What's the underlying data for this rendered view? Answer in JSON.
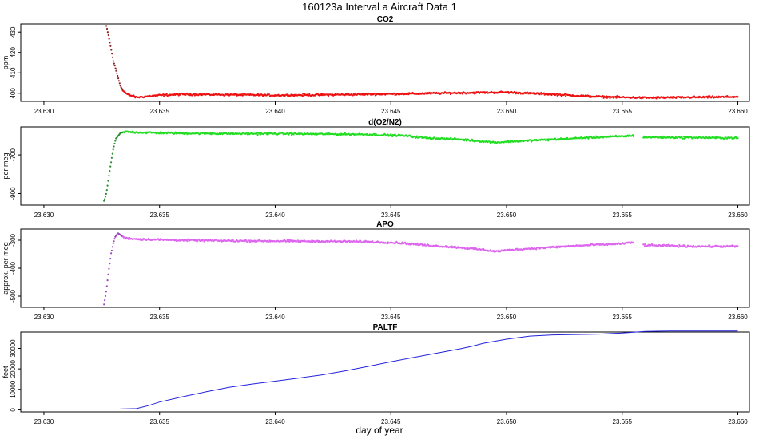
{
  "figure": {
    "title": "160123a   Interval a Aircraft Data 1",
    "xlabel": "day of year"
  },
  "chart_data": [
    {
      "type": "scatter",
      "title": "CO2",
      "ylabel": "ppm",
      "xlim": [
        23.629,
        23.6605
      ],
      "ylim": [
        396,
        434
      ],
      "x_ticks": [
        "23.630",
        "23.635",
        "23.640",
        "23.645",
        "23.650",
        "23.655",
        "23.660"
      ],
      "y_ticks": [
        400,
        410,
        420,
        430
      ],
      "colors": {
        "main": "#ee1111",
        "early": "#8b2222"
      },
      "points": [
        [
          23.6327,
          433
        ],
        [
          23.6328,
          428
        ],
        [
          23.6329,
          422
        ],
        [
          23.633,
          416
        ],
        [
          23.6331,
          412
        ],
        [
          23.6332,
          408
        ],
        [
          23.6333,
          404
        ],
        [
          23.6334,
          401.5
        ],
        [
          23.6336,
          399.5
        ],
        [
          23.634,
          398
        ],
        [
          23.6345,
          398.5
        ],
        [
          23.635,
          399
        ],
        [
          23.636,
          399.5
        ],
        [
          23.638,
          399.3
        ],
        [
          23.64,
          399
        ],
        [
          23.642,
          399.2
        ],
        [
          23.644,
          399.5
        ],
        [
          23.646,
          399.8
        ],
        [
          23.648,
          400.2
        ],
        [
          23.65,
          400.5
        ],
        [
          23.651,
          400
        ],
        [
          23.652,
          399.5
        ],
        [
          23.653,
          398.8
        ],
        [
          23.654,
          398.3
        ],
        [
          23.655,
          398
        ],
        [
          23.656,
          397.8
        ],
        [
          23.657,
          397.9
        ],
        [
          23.658,
          398
        ],
        [
          23.659,
          398.1
        ],
        [
          23.66,
          398.3
        ]
      ]
    },
    {
      "type": "scatter",
      "title": "d(O2/N2)",
      "ylabel": "per meg",
      "xlim": [
        23.629,
        23.6605
      ],
      "ylim": [
        -960,
        -555
      ],
      "x_ticks": [
        "23.630",
        "23.635",
        "23.640",
        "23.645",
        "23.650",
        "23.655",
        "23.660"
      ],
      "y_ticks": [
        -900,
        -700
      ],
      "colors": {
        "main": "#22dd22",
        "early": "#2e8b2e"
      },
      "points": [
        [
          23.6326,
          -940
        ],
        [
          23.6327,
          -900
        ],
        [
          23.6328,
          -820
        ],
        [
          23.6329,
          -740
        ],
        [
          23.633,
          -670
        ],
        [
          23.6331,
          -620
        ],
        [
          23.6333,
          -588
        ],
        [
          23.6335,
          -580
        ],
        [
          23.634,
          -583
        ],
        [
          23.635,
          -586
        ],
        [
          23.636,
          -588
        ],
        [
          23.638,
          -590
        ],
        [
          23.64,
          -590
        ],
        [
          23.642,
          -592
        ],
        [
          23.644,
          -594
        ],
        [
          23.6455,
          -600
        ],
        [
          23.6465,
          -612
        ],
        [
          23.648,
          -620
        ],
        [
          23.649,
          -630
        ],
        [
          23.6495,
          -636
        ],
        [
          23.65,
          -632
        ],
        [
          23.651,
          -626
        ],
        [
          23.652,
          -620
        ],
        [
          23.653,
          -614
        ],
        [
          23.654,
          -608
        ],
        [
          23.655,
          -604
        ],
        [
          23.6555,
          -600
        ],
        [
          23.656,
          -608
        ],
        [
          23.657,
          -610
        ],
        [
          23.658,
          -610
        ],
        [
          23.659,
          -612
        ],
        [
          23.66,
          -612
        ]
      ],
      "gaps": [
        [
          23.6555,
          23.6559
        ]
      ]
    },
    {
      "type": "scatter",
      "title": "APO",
      "ylabel": "approx. per meg",
      "xlim": [
        23.629,
        23.6605
      ],
      "ylim": [
        -540,
        -260
      ],
      "x_ticks": [
        "23.630",
        "23.635",
        "23.640",
        "23.645",
        "23.650",
        "23.655",
        "23.660"
      ],
      "y_ticks": [
        -500,
        -400,
        -300
      ],
      "colors": {
        "main": "#dd66ee",
        "early": "#9944bb"
      },
      "points": [
        [
          23.6326,
          -530
        ],
        [
          23.6327,
          -480
        ],
        [
          23.6328,
          -410
        ],
        [
          23.6329,
          -350
        ],
        [
          23.633,
          -310
        ],
        [
          23.6331,
          -285
        ],
        [
          23.6332,
          -275
        ],
        [
          23.6333,
          -280
        ],
        [
          23.6335,
          -292
        ],
        [
          23.634,
          -296
        ],
        [
          23.635,
          -298
        ],
        [
          23.636,
          -300
        ],
        [
          23.638,
          -302
        ],
        [
          23.64,
          -303
        ],
        [
          23.642,
          -304
        ],
        [
          23.644,
          -305
        ],
        [
          23.6455,
          -310
        ],
        [
          23.6465,
          -318
        ],
        [
          23.648,
          -326
        ],
        [
          23.649,
          -334
        ],
        [
          23.6495,
          -340
        ],
        [
          23.65,
          -336
        ],
        [
          23.651,
          -330
        ],
        [
          23.652,
          -325
        ],
        [
          23.653,
          -320
        ],
        [
          23.654,
          -316
        ],
        [
          23.655,
          -312
        ],
        [
          23.6555,
          -308
        ],
        [
          23.656,
          -318
        ],
        [
          23.657,
          -320
        ],
        [
          23.658,
          -322
        ],
        [
          23.659,
          -322
        ],
        [
          23.66,
          -322
        ]
      ],
      "gaps": [
        [
          23.6555,
          23.6559
        ]
      ]
    },
    {
      "type": "line",
      "title": "PALTF",
      "ylabel": "feet",
      "xlim": [
        23.629,
        23.6605
      ],
      "ylim": [
        -1000,
        38000
      ],
      "x_ticks": [
        "23.630",
        "23.635",
        "23.640",
        "23.645",
        "23.650",
        "23.655",
        "23.660"
      ],
      "y_ticks": [
        0,
        10000,
        20000,
        30000
      ],
      "colors": {
        "main": "#2222dd"
      },
      "x": [
        23.6333,
        23.634,
        23.6345,
        23.635,
        23.636,
        23.637,
        23.638,
        23.639,
        23.64,
        23.641,
        23.642,
        23.643,
        23.644,
        23.645,
        23.646,
        23.647,
        23.648,
        23.6485,
        23.649,
        23.65,
        23.651,
        23.652,
        23.653,
        23.654,
        23.655,
        23.656,
        23.657,
        23.658,
        23.659,
        23.66
      ],
      "y": [
        400,
        600,
        2000,
        3800,
        6400,
        8800,
        11000,
        12600,
        14000,
        15500,
        17000,
        19000,
        21200,
        23500,
        25600,
        27700,
        29800,
        31000,
        32500,
        34500,
        36000,
        36600,
        36800,
        37000,
        37500,
        38300,
        38500,
        38500,
        38500,
        38500
      ]
    }
  ]
}
